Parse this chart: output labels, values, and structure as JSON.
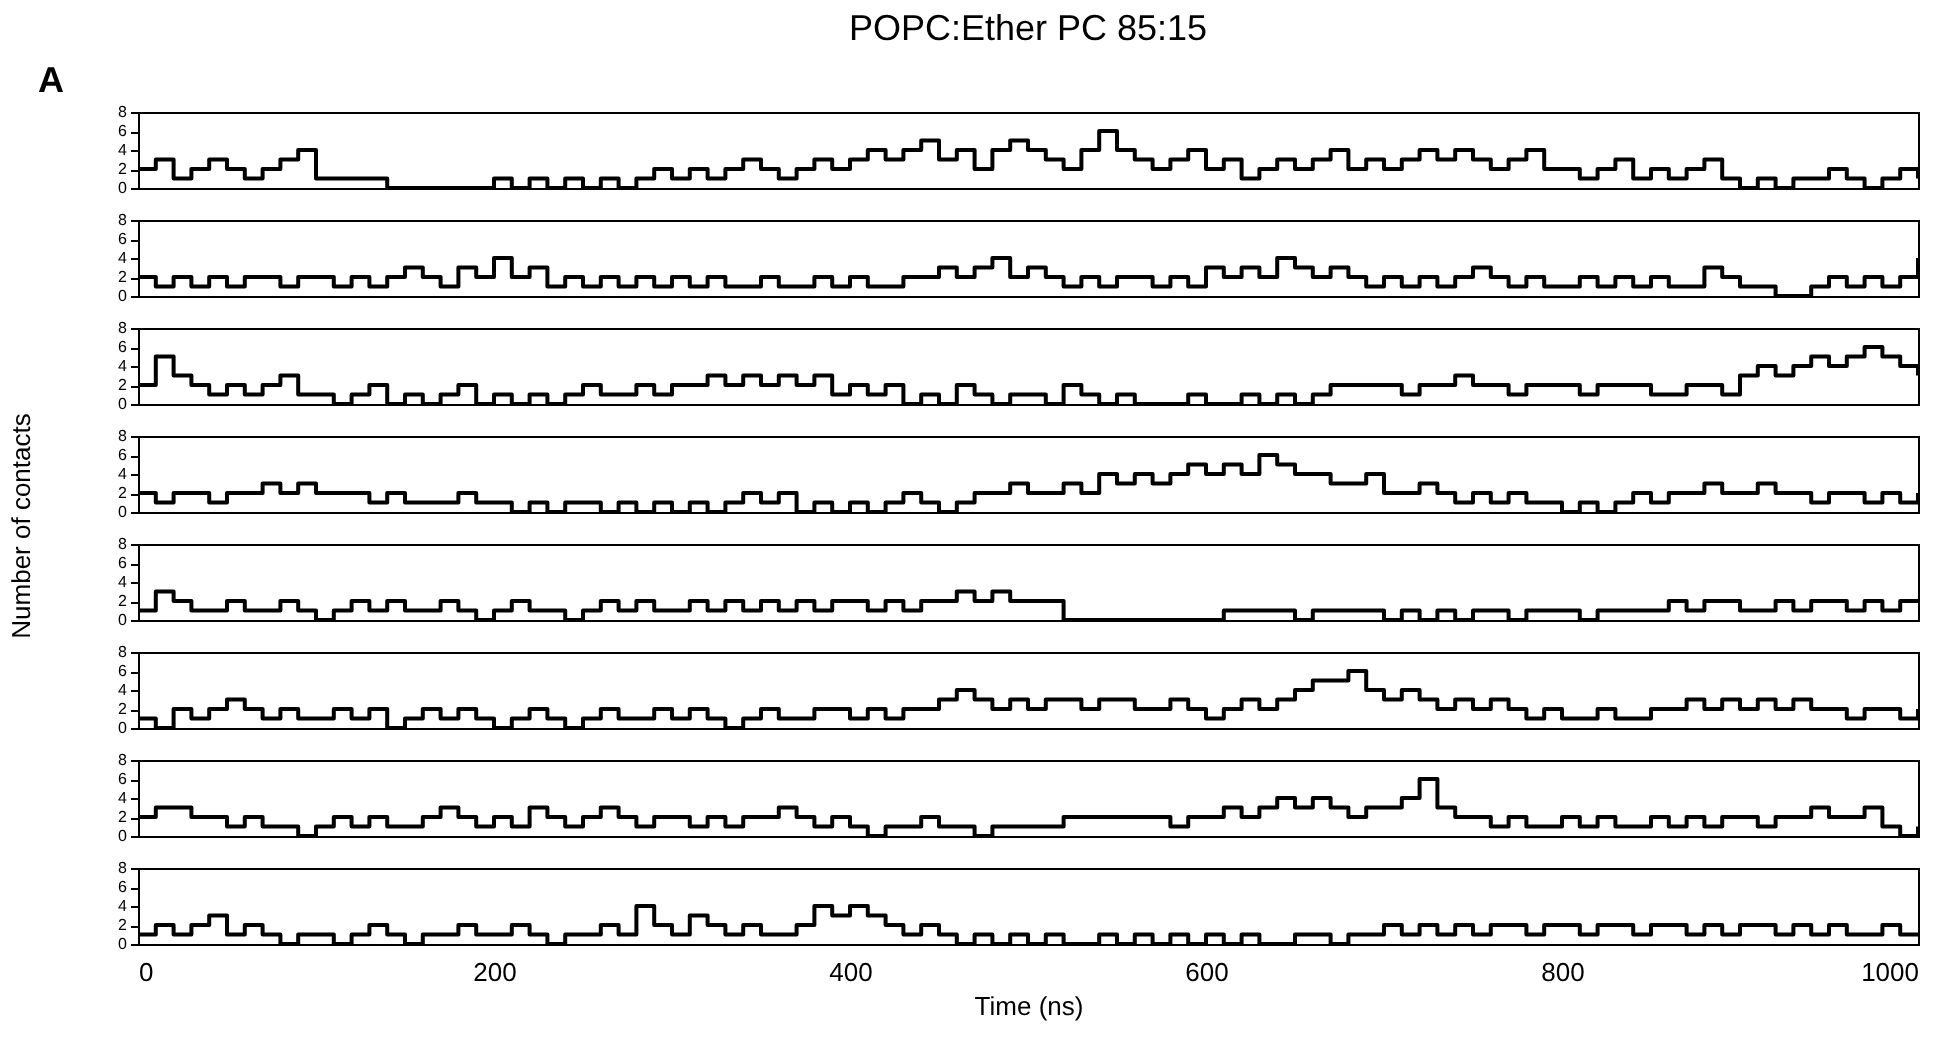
{
  "chart_data": [
    {
      "type": "step",
      "title": "POPC:Ether PC 85:15",
      "annotations": [
        "A"
      ],
      "color": "#000000",
      "tick_labels": "y",
      "xlim": [
        0,
        1000
      ],
      "xticks": [
        0,
        200,
        400,
        600,
        800,
        1000
      ],
      "ylim": [
        0,
        8
      ],
      "yticks": [
        0,
        2,
        4,
        6,
        8
      ],
      "grid": false,
      "x": [
        0,
        10,
        20,
        30,
        40,
        50,
        60,
        70,
        80,
        90,
        100,
        110,
        120,
        130,
        140,
        150,
        160,
        170,
        180,
        190,
        200,
        210,
        220,
        230,
        240,
        250,
        260,
        270,
        280,
        290,
        300,
        310,
        320,
        330,
        340,
        350,
        360,
        370,
        380,
        390,
        400,
        410,
        420,
        430,
        440,
        450,
        460,
        470,
        480,
        490,
        500,
        510,
        520,
        530,
        540,
        550,
        560,
        570,
        580,
        590,
        600,
        610,
        620,
        630,
        640,
        650,
        660,
        670,
        680,
        690,
        700,
        710,
        720,
        730,
        740,
        750,
        760,
        770,
        780,
        790,
        800,
        810,
        820,
        830,
        840,
        850,
        860,
        870,
        880,
        890,
        900,
        910,
        920,
        930,
        940,
        950,
        960,
        970,
        980,
        990,
        1000
      ],
      "values": [
        2,
        3,
        1,
        2,
        3,
        2,
        1,
        2,
        3,
        4,
        1,
        1,
        1,
        1,
        0,
        0,
        0,
        0,
        0,
        0,
        1,
        0,
        1,
        0,
        1,
        0,
        1,
        0,
        1,
        2,
        1,
        2,
        1,
        2,
        3,
        2,
        1,
        2,
        3,
        2,
        3,
        4,
        3,
        4,
        5,
        3,
        4,
        2,
        4,
        5,
        4,
        3,
        2,
        4,
        6,
        4,
        3,
        2,
        3,
        4,
        2,
        3,
        1,
        2,
        3,
        2,
        3,
        4,
        2,
        3,
        2,
        3,
        4,
        3,
        4,
        3,
        2,
        3,
        4,
        2,
        2,
        1,
        2,
        3,
        1,
        2,
        1,
        2,
        3,
        1,
        0,
        1,
        0,
        1,
        1,
        2,
        1,
        0,
        1,
        2,
        1
      ]
    },
    {
      "type": "step",
      "color": "#000000",
      "tick_labels": "y",
      "xlim": [
        0,
        1000
      ],
      "xticks": [
        0,
        200,
        400,
        600,
        800,
        1000
      ],
      "ylim": [
        0,
        8
      ],
      "yticks": [
        0,
        2,
        4,
        6,
        8
      ],
      "grid": false,
      "x": [
        0,
        10,
        20,
        30,
        40,
        50,
        60,
        70,
        80,
        90,
        100,
        110,
        120,
        130,
        140,
        150,
        160,
        170,
        180,
        190,
        200,
        210,
        220,
        230,
        240,
        250,
        260,
        270,
        280,
        290,
        300,
        310,
        320,
        330,
        340,
        350,
        360,
        370,
        380,
        390,
        400,
        410,
        420,
        430,
        440,
        450,
        460,
        470,
        480,
        490,
        500,
        510,
        520,
        530,
        540,
        550,
        560,
        570,
        580,
        590,
        600,
        610,
        620,
        630,
        640,
        650,
        660,
        670,
        680,
        690,
        700,
        710,
        720,
        730,
        740,
        750,
        760,
        770,
        780,
        790,
        800,
        810,
        820,
        830,
        840,
        850,
        860,
        870,
        880,
        890,
        900,
        910,
        920,
        930,
        940,
        950,
        960,
        970,
        980,
        990,
        1000
      ],
      "values": [
        2,
        1,
        2,
        1,
        2,
        1,
        2,
        2,
        1,
        2,
        2,
        1,
        2,
        1,
        2,
        3,
        2,
        1,
        3,
        2,
        4,
        2,
        3,
        1,
        2,
        1,
        2,
        1,
        2,
        1,
        2,
        1,
        2,
        1,
        1,
        2,
        1,
        1,
        2,
        1,
        2,
        1,
        1,
        2,
        2,
        3,
        2,
        3,
        4,
        2,
        3,
        2,
        1,
        2,
        1,
        2,
        2,
        1,
        2,
        1,
        3,
        2,
        3,
        2,
        4,
        3,
        2,
        3,
        2,
        1,
        2,
        1,
        2,
        1,
        2,
        3,
        2,
        1,
        2,
        1,
        1,
        2,
        1,
        2,
        1,
        2,
        1,
        1,
        3,
        2,
        1,
        1,
        0,
        0,
        1,
        2,
        1,
        2,
        1,
        2,
        4
      ]
    },
    {
      "type": "step",
      "color": "#000000",
      "tick_labels": "y",
      "xlim": [
        0,
        1000
      ],
      "xticks": [
        0,
        200,
        400,
        600,
        800,
        1000
      ],
      "ylim": [
        0,
        8
      ],
      "yticks": [
        0,
        2,
        4,
        6,
        8
      ],
      "grid": false,
      "x": [
        0,
        10,
        20,
        30,
        40,
        50,
        60,
        70,
        80,
        90,
        100,
        110,
        120,
        130,
        140,
        150,
        160,
        170,
        180,
        190,
        200,
        210,
        220,
        230,
        240,
        250,
        260,
        270,
        280,
        290,
        300,
        310,
        320,
        330,
        340,
        350,
        360,
        370,
        380,
        390,
        400,
        410,
        420,
        430,
        440,
        450,
        460,
        470,
        480,
        490,
        500,
        510,
        520,
        530,
        540,
        550,
        560,
        570,
        580,
        590,
        600,
        610,
        620,
        630,
        640,
        650,
        660,
        670,
        680,
        690,
        700,
        710,
        720,
        730,
        740,
        750,
        760,
        770,
        780,
        790,
        800,
        810,
        820,
        830,
        840,
        850,
        860,
        870,
        880,
        890,
        900,
        910,
        920,
        930,
        940,
        950,
        960,
        970,
        980,
        990,
        1000
      ],
      "values": [
        2,
        5,
        3,
        2,
        1,
        2,
        1,
        2,
        3,
        1,
        1,
        0,
        1,
        2,
        0,
        1,
        0,
        1,
        2,
        0,
        1,
        0,
        1,
        0,
        1,
        2,
        1,
        1,
        2,
        1,
        2,
        2,
        3,
        2,
        3,
        2,
        3,
        2,
        3,
        1,
        2,
        1,
        2,
        0,
        1,
        0,
        2,
        1,
        0,
        1,
        1,
        0,
        2,
        1,
        0,
        1,
        0,
        0,
        0,
        1,
        0,
        0,
        1,
        0,
        1,
        0,
        1,
        2,
        2,
        2,
        2,
        1,
        2,
        2,
        3,
        2,
        2,
        1,
        2,
        2,
        2,
        1,
        2,
        2,
        2,
        1,
        1,
        2,
        2,
        1,
        3,
        4,
        3,
        4,
        5,
        4,
        5,
        6,
        5,
        4,
        3
      ]
    },
    {
      "type": "step",
      "ylabel": "Number of contacts",
      "color": "#000000",
      "tick_labels": "y",
      "xlim": [
        0,
        1000
      ],
      "xticks": [
        0,
        200,
        400,
        600,
        800,
        1000
      ],
      "ylim": [
        0,
        8
      ],
      "yticks": [
        0,
        2,
        4,
        6,
        8
      ],
      "grid": false,
      "x": [
        0,
        10,
        20,
        30,
        40,
        50,
        60,
        70,
        80,
        90,
        100,
        110,
        120,
        130,
        140,
        150,
        160,
        170,
        180,
        190,
        200,
        210,
        220,
        230,
        240,
        250,
        260,
        270,
        280,
        290,
        300,
        310,
        320,
        330,
        340,
        350,
        360,
        370,
        380,
        390,
        400,
        410,
        420,
        430,
        440,
        450,
        460,
        470,
        480,
        490,
        500,
        510,
        520,
        530,
        540,
        550,
        560,
        570,
        580,
        590,
        600,
        610,
        620,
        630,
        640,
        650,
        660,
        670,
        680,
        690,
        700,
        710,
        720,
        730,
        740,
        750,
        760,
        770,
        780,
        790,
        800,
        810,
        820,
        830,
        840,
        850,
        860,
        870,
        880,
        890,
        900,
        910,
        920,
        930,
        940,
        950,
        960,
        970,
        980,
        990,
        1000
      ],
      "values": [
        2,
        1,
        2,
        2,
        1,
        2,
        2,
        3,
        2,
        3,
        2,
        2,
        2,
        1,
        2,
        1,
        1,
        1,
        2,
        1,
        1,
        0,
        1,
        0,
        1,
        1,
        0,
        1,
        0,
        1,
        0,
        1,
        0,
        1,
        2,
        1,
        2,
        0,
        1,
        0,
        1,
        0,
        1,
        2,
        1,
        0,
        1,
        2,
        2,
        3,
        2,
        2,
        3,
        2,
        4,
        3,
        4,
        3,
        4,
        5,
        4,
        5,
        4,
        6,
        5,
        4,
        4,
        3,
        3,
        4,
        2,
        2,
        3,
        2,
        1,
        2,
        1,
        2,
        1,
        1,
        0,
        1,
        0,
        1,
        2,
        1,
        2,
        2,
        3,
        2,
        2,
        3,
        2,
        2,
        1,
        2,
        2,
        1,
        2,
        1,
        2
      ]
    },
    {
      "type": "step",
      "color": "#000000",
      "tick_labels": "y",
      "xlim": [
        0,
        1000
      ],
      "xticks": [
        0,
        200,
        400,
        600,
        800,
        1000
      ],
      "ylim": [
        0,
        8
      ],
      "yticks": [
        0,
        2,
        4,
        6,
        8
      ],
      "grid": false,
      "x": [
        0,
        10,
        20,
        30,
        40,
        50,
        60,
        70,
        80,
        90,
        100,
        110,
        120,
        130,
        140,
        150,
        160,
        170,
        180,
        190,
        200,
        210,
        220,
        230,
        240,
        250,
        260,
        270,
        280,
        290,
        300,
        310,
        320,
        330,
        340,
        350,
        360,
        370,
        380,
        390,
        400,
        410,
        420,
        430,
        440,
        450,
        460,
        470,
        480,
        490,
        500,
        510,
        520,
        530,
        540,
        550,
        560,
        570,
        580,
        590,
        600,
        610,
        620,
        630,
        640,
        650,
        660,
        670,
        680,
        690,
        700,
        710,
        720,
        730,
        740,
        750,
        760,
        770,
        780,
        790,
        800,
        810,
        820,
        830,
        840,
        850,
        860,
        870,
        880,
        890,
        900,
        910,
        920,
        930,
        940,
        950,
        960,
        970,
        980,
        990,
        1000
      ],
      "values": [
        1,
        3,
        2,
        1,
        1,
        2,
        1,
        1,
        2,
        1,
        0,
        1,
        2,
        1,
        2,
        1,
        1,
        2,
        1,
        0,
        1,
        2,
        1,
        1,
        0,
        1,
        2,
        1,
        2,
        1,
        1,
        2,
        1,
        2,
        1,
        2,
        1,
        2,
        1,
        2,
        2,
        1,
        2,
        1,
        2,
        2,
        3,
        2,
        3,
        2,
        2,
        2,
        0,
        0,
        0,
        0,
        0,
        0,
        0,
        0,
        0,
        1,
        1,
        1,
        1,
        0,
        1,
        1,
        1,
        1,
        0,
        1,
        0,
        1,
        0,
        1,
        1,
        0,
        1,
        1,
        1,
        0,
        1,
        1,
        1,
        1,
        2,
        1,
        2,
        2,
        1,
        1,
        2,
        1,
        2,
        2,
        1,
        2,
        1,
        2,
        2
      ]
    },
    {
      "type": "step",
      "color": "#000000",
      "tick_labels": "y",
      "xlim": [
        0,
        1000
      ],
      "xticks": [
        0,
        200,
        400,
        600,
        800,
        1000
      ],
      "ylim": [
        0,
        8
      ],
      "yticks": [
        0,
        2,
        4,
        6,
        8
      ],
      "grid": false,
      "x": [
        0,
        10,
        20,
        30,
        40,
        50,
        60,
        70,
        80,
        90,
        100,
        110,
        120,
        130,
        140,
        150,
        160,
        170,
        180,
        190,
        200,
        210,
        220,
        230,
        240,
        250,
        260,
        270,
        280,
        290,
        300,
        310,
        320,
        330,
        340,
        350,
        360,
        370,
        380,
        390,
        400,
        410,
        420,
        430,
        440,
        450,
        460,
        470,
        480,
        490,
        500,
        510,
        520,
        530,
        540,
        550,
        560,
        570,
        580,
        590,
        600,
        610,
        620,
        630,
        640,
        650,
        660,
        670,
        680,
        690,
        700,
        710,
        720,
        730,
        740,
        750,
        760,
        770,
        780,
        790,
        800,
        810,
        820,
        830,
        840,
        850,
        860,
        870,
        880,
        890,
        900,
        910,
        920,
        930,
        940,
        950,
        960,
        970,
        980,
        990,
        1000
      ],
      "values": [
        1,
        0,
        2,
        1,
        2,
        3,
        2,
        1,
        2,
        1,
        1,
        2,
        1,
        2,
        0,
        1,
        2,
        1,
        2,
        1,
        0,
        1,
        2,
        1,
        0,
        1,
        2,
        1,
        1,
        2,
        1,
        2,
        1,
        0,
        1,
        2,
        1,
        1,
        2,
        2,
        1,
        2,
        1,
        2,
        2,
        3,
        4,
        3,
        2,
        3,
        2,
        3,
        3,
        2,
        3,
        3,
        2,
        2,
        3,
        2,
        1,
        2,
        3,
        2,
        3,
        4,
        5,
        5,
        6,
        4,
        3,
        4,
        3,
        2,
        3,
        2,
        3,
        2,
        1,
        2,
        1,
        1,
        2,
        1,
        1,
        2,
        2,
        3,
        2,
        3,
        2,
        3,
        2,
        3,
        2,
        2,
        1,
        2,
        2,
        1,
        2
      ]
    },
    {
      "type": "step",
      "color": "#000000",
      "tick_labels": "y",
      "xlim": [
        0,
        1000
      ],
      "xticks": [
        0,
        200,
        400,
        600,
        800,
        1000
      ],
      "ylim": [
        0,
        8
      ],
      "yticks": [
        0,
        2,
        4,
        6,
        8
      ],
      "grid": false,
      "x": [
        0,
        10,
        20,
        30,
        40,
        50,
        60,
        70,
        80,
        90,
        100,
        110,
        120,
        130,
        140,
        150,
        160,
        170,
        180,
        190,
        200,
        210,
        220,
        230,
        240,
        250,
        260,
        270,
        280,
        290,
        300,
        310,
        320,
        330,
        340,
        350,
        360,
        370,
        380,
        390,
        400,
        410,
        420,
        430,
        440,
        450,
        460,
        470,
        480,
        490,
        500,
        510,
        520,
        530,
        540,
        550,
        560,
        570,
        580,
        590,
        600,
        610,
        620,
        630,
        640,
        650,
        660,
        670,
        680,
        690,
        700,
        710,
        720,
        730,
        740,
        750,
        760,
        770,
        780,
        790,
        800,
        810,
        820,
        830,
        840,
        850,
        860,
        870,
        880,
        890,
        900,
        910,
        920,
        930,
        940,
        950,
        960,
        970,
        980,
        990,
        1000
      ],
      "values": [
        2,
        3,
        3,
        2,
        2,
        1,
        2,
        1,
        1,
        0,
        1,
        2,
        1,
        2,
        1,
        1,
        2,
        3,
        2,
        1,
        2,
        1,
        3,
        2,
        1,
        2,
        3,
        2,
        1,
        2,
        2,
        1,
        2,
        1,
        2,
        2,
        3,
        2,
        1,
        2,
        1,
        0,
        1,
        1,
        2,
        1,
        1,
        0,
        1,
        1,
        1,
        1,
        2,
        2,
        2,
        2,
        2,
        2,
        1,
        2,
        2,
        3,
        2,
        3,
        4,
        3,
        4,
        3,
        2,
        3,
        3,
        4,
        6,
        3,
        2,
        2,
        1,
        2,
        1,
        1,
        2,
        1,
        2,
        1,
        1,
        2,
        1,
        2,
        1,
        2,
        2,
        1,
        2,
        2,
        3,
        2,
        2,
        3,
        1,
        0,
        1
      ]
    },
    {
      "type": "step",
      "xlabel": "Time (ns)",
      "color": "#000000",
      "xlim": [
        0,
        1000
      ],
      "xticks": [
        0,
        200,
        400,
        600,
        800,
        1000
      ],
      "ylim": [
        0,
        8
      ],
      "yticks": [
        0,
        2,
        4,
        6,
        8
      ],
      "grid": false,
      "x": [
        0,
        10,
        20,
        30,
        40,
        50,
        60,
        70,
        80,
        90,
        100,
        110,
        120,
        130,
        140,
        150,
        160,
        170,
        180,
        190,
        200,
        210,
        220,
        230,
        240,
        250,
        260,
        270,
        280,
        290,
        300,
        310,
        320,
        330,
        340,
        350,
        360,
        370,
        380,
        390,
        400,
        410,
        420,
        430,
        440,
        450,
        460,
        470,
        480,
        490,
        500,
        510,
        520,
        530,
        540,
        550,
        560,
        570,
        580,
        590,
        600,
        610,
        620,
        630,
        640,
        650,
        660,
        670,
        680,
        690,
        700,
        710,
        720,
        730,
        740,
        750,
        760,
        770,
        780,
        790,
        800,
        810,
        820,
        830,
        840,
        850,
        860,
        870,
        880,
        890,
        900,
        910,
        920,
        930,
        940,
        950,
        960,
        970,
        980,
        990,
        1000
      ],
      "values": [
        1,
        2,
        1,
        2,
        3,
        1,
        2,
        1,
        0,
        1,
        1,
        0,
        1,
        2,
        1,
        0,
        1,
        1,
        2,
        1,
        1,
        2,
        1,
        0,
        1,
        1,
        2,
        1,
        4,
        2,
        1,
        3,
        2,
        1,
        2,
        1,
        1,
        2,
        4,
        3,
        4,
        3,
        2,
        1,
        2,
        1,
        0,
        1,
        0,
        1,
        0,
        1,
        0,
        0,
        1,
        0,
        1,
        0,
        1,
        0,
        1,
        0,
        1,
        0,
        0,
        1,
        1,
        0,
        1,
        1,
        2,
        1,
        2,
        1,
        2,
        1,
        2,
        2,
        1,
        2,
        2,
        1,
        2,
        2,
        1,
        2,
        2,
        1,
        2,
        1,
        2,
        2,
        1,
        2,
        1,
        2,
        1,
        1,
        2,
        1,
        1
      ]
    }
  ]
}
